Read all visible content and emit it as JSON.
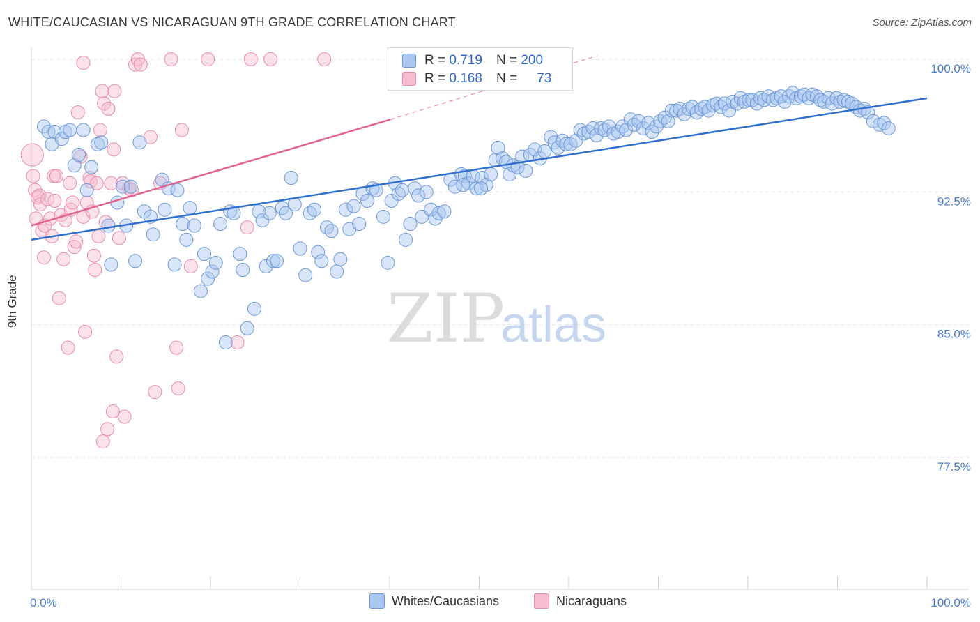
{
  "header": {
    "title": "WHITE/CAUCASIAN VS NICARAGUAN 9TH GRADE CORRELATION CHART",
    "source": "Source: ZipAtlas.com"
  },
  "watermark": {
    "zip": "ZIP",
    "atlas": "atlas"
  },
  "legend": {
    "rows": [
      {
        "r_label": "R =",
        "r_value": "0.719",
        "n_label": "N =",
        "n_value": "200"
      },
      {
        "r_label": "R =",
        "r_value": "0.168",
        "n_label": "N =",
        "n_value": "73"
      }
    ]
  },
  "bottom_legend": {
    "items": [
      {
        "label": "Whites/Caucasians"
      },
      {
        "label": "Nicaraguans"
      }
    ]
  },
  "colors": {
    "blue_fill": "#a9c6f0",
    "blue_stroke": "#6b98d8",
    "blue_line": "#2f6fce",
    "pink_fill": "#f7bcd0",
    "pink_stroke": "#e98aaa",
    "pink_line": "#e0628f",
    "grid": "#e4e4e4",
    "tick_text": "#4a7cd0"
  },
  "chart_data": {
    "type": "scatter",
    "title": "WHITE/CAUCASIAN VS NICARAGUAN 9TH GRADE CORRELATION CHART",
    "xlabel": "",
    "ylabel": "9th Grade",
    "xlim": [
      0,
      100
    ],
    "ylim": [
      70,
      101
    ],
    "x_tick_labels": [
      "0.0%",
      "100.0%"
    ],
    "y_ticks": [
      77.5,
      85.0,
      92.5,
      100.0
    ],
    "y_tick_labels": [
      "77.5%",
      "85.0%",
      "92.5%",
      "100.0%"
    ],
    "grid": true,
    "legend_position": "top-center",
    "series": [
      {
        "name": "Whites/Caucasians",
        "r": 0.719,
        "n": 200,
        "trend": {
          "x0": 0,
          "y0": 89.8,
          "x1": 100,
          "y1": 97.8
        },
        "points": [
          [
            1.4,
            96.2
          ],
          [
            1.9,
            95.9
          ],
          [
            2.3,
            95.2
          ],
          [
            2.6,
            95.9
          ],
          [
            3.4,
            95.5
          ],
          [
            3.8,
            95.9
          ],
          [
            4.3,
            96.0
          ],
          [
            4.8,
            94.0
          ],
          [
            5.3,
            94.6
          ],
          [
            5.8,
            96.0
          ],
          [
            6.2,
            92.6
          ],
          [
            6.7,
            93.9
          ],
          [
            7.4,
            95.2
          ],
          [
            7.8,
            95.3
          ],
          [
            8.6,
            90.6
          ],
          [
            8.9,
            88.4
          ],
          [
            9.6,
            91.9
          ],
          [
            10.2,
            92.8
          ],
          [
            10.6,
            90.6
          ],
          [
            11.1,
            92.8
          ],
          [
            11.6,
            88.6
          ],
          [
            12.1,
            95.3
          ],
          [
            12.6,
            91.4
          ],
          [
            13.3,
            91.1
          ],
          [
            13.6,
            90.1
          ],
          [
            14.6,
            93.2
          ],
          [
            14.9,
            91.5
          ],
          [
            15.3,
            92.7
          ],
          [
            16.0,
            88.4
          ],
          [
            16.3,
            92.6
          ],
          [
            16.9,
            90.7
          ],
          [
            17.3,
            89.8
          ],
          [
            17.7,
            91.6
          ],
          [
            18.2,
            90.6
          ],
          [
            18.9,
            86.9
          ],
          [
            19.3,
            89.0
          ],
          [
            19.7,
            87.6
          ],
          [
            20.2,
            88.0
          ],
          [
            20.6,
            88.5
          ],
          [
            21.1,
            90.7
          ],
          [
            21.7,
            84.0
          ],
          [
            22.2,
            91.4
          ],
          [
            22.6,
            91.3
          ],
          [
            23.3,
            89.0
          ],
          [
            23.6,
            88.1
          ],
          [
            24.1,
            84.8
          ],
          [
            24.9,
            85.9
          ],
          [
            25.4,
            91.4
          ],
          [
            25.8,
            90.9
          ],
          [
            26.2,
            88.3
          ],
          [
            26.6,
            91.3
          ],
          [
            27.0,
            88.6
          ],
          [
            27.4,
            88.6
          ],
          [
            28.0,
            91.6
          ],
          [
            28.4,
            91.3
          ],
          [
            29.0,
            93.3
          ],
          [
            29.4,
            91.8
          ],
          [
            30.0,
            89.3
          ],
          [
            30.6,
            87.8
          ],
          [
            31.1,
            91.3
          ],
          [
            31.6,
            91.5
          ],
          [
            32.0,
            89.1
          ],
          [
            32.4,
            88.6
          ],
          [
            33.0,
            90.5
          ],
          [
            33.5,
            90.3
          ],
          [
            34.1,
            88.0
          ],
          [
            34.5,
            88.7
          ],
          [
            35.1,
            91.5
          ],
          [
            35.5,
            90.4
          ],
          [
            36.0,
            91.7
          ],
          [
            36.6,
            90.7
          ],
          [
            37.0,
            92.4
          ],
          [
            37.5,
            92.0
          ],
          [
            38.1,
            92.7
          ],
          [
            38.5,
            92.6
          ],
          [
            39.3,
            91.1
          ],
          [
            39.8,
            88.5
          ],
          [
            40.2,
            92.0
          ],
          [
            40.6,
            93.0
          ],
          [
            41.0,
            92.4
          ],
          [
            41.4,
            92.6
          ],
          [
            41.8,
            89.8
          ],
          [
            42.3,
            90.7
          ],
          [
            42.8,
            92.7
          ],
          [
            43.2,
            92.3
          ],
          [
            43.6,
            91.1
          ],
          [
            44.1,
            92.5
          ],
          [
            44.6,
            91.5
          ],
          [
            45.1,
            91.0
          ],
          [
            45.5,
            91.3
          ],
          [
            46.1,
            91.4
          ],
          [
            46.8,
            93.2
          ],
          [
            47.3,
            92.8
          ],
          [
            48.0,
            93.5
          ],
          [
            48.4,
            93.4
          ],
          [
            48.8,
            93.0
          ],
          [
            49.3,
            93.4
          ],
          [
            49.7,
            92.7
          ],
          [
            50.3,
            93.3
          ],
          [
            50.8,
            92.9
          ],
          [
            51.3,
            93.5
          ],
          [
            51.8,
            94.3
          ],
          [
            52.1,
            95.0
          ],
          [
            52.6,
            94.4
          ],
          [
            53.0,
            94.2
          ],
          [
            53.4,
            93.5
          ],
          [
            53.8,
            94.0
          ],
          [
            54.3,
            93.9
          ],
          [
            54.8,
            94.5
          ],
          [
            55.2,
            93.7
          ],
          [
            55.7,
            94.6
          ],
          [
            56.2,
            94.9
          ],
          [
            56.8,
            94.4
          ],
          [
            57.3,
            94.8
          ],
          [
            58.0,
            95.6
          ],
          [
            58.4,
            95.3
          ],
          [
            58.8,
            95.0
          ],
          [
            59.3,
            95.4
          ],
          [
            59.7,
            95.2
          ],
          [
            60.2,
            95.2
          ],
          [
            60.8,
            95.4
          ],
          [
            61.3,
            96.0
          ],
          [
            61.7,
            95.8
          ],
          [
            62.2,
            95.9
          ],
          [
            62.7,
            96.1
          ],
          [
            63.1,
            95.7
          ],
          [
            63.6,
            96.1
          ],
          [
            64.0,
            96.0
          ],
          [
            64.5,
            96.2
          ],
          [
            65.0,
            95.8
          ],
          [
            65.5,
            95.9
          ],
          [
            66.0,
            96.2
          ],
          [
            66.4,
            96.0
          ],
          [
            66.9,
            96.6
          ],
          [
            67.3,
            96.3
          ],
          [
            67.8,
            96.5
          ],
          [
            68.3,
            96.1
          ],
          [
            68.9,
            96.4
          ],
          [
            69.3,
            95.9
          ],
          [
            69.8,
            96.2
          ],
          [
            70.2,
            96.5
          ],
          [
            70.7,
            96.7
          ],
          [
            71.1,
            96.5
          ],
          [
            71.5,
            97.1
          ],
          [
            72.0,
            97.1
          ],
          [
            72.4,
            97.2
          ],
          [
            72.9,
            96.9
          ],
          [
            73.4,
            97.2
          ],
          [
            73.8,
            97.3
          ],
          [
            74.3,
            97.0
          ],
          [
            74.8,
            97.2
          ],
          [
            75.2,
            97.3
          ],
          [
            75.6,
            97.1
          ],
          [
            76.1,
            97.4
          ],
          [
            76.5,
            97.5
          ],
          [
            77.0,
            97.3
          ],
          [
            77.4,
            97.5
          ],
          [
            77.9,
            97.1
          ],
          [
            78.3,
            97.6
          ],
          [
            78.8,
            97.5
          ],
          [
            79.2,
            97.8
          ],
          [
            79.6,
            97.6
          ],
          [
            80.1,
            97.7
          ],
          [
            80.5,
            97.7
          ],
          [
            81.0,
            97.5
          ],
          [
            81.4,
            97.8
          ],
          [
            81.8,
            97.7
          ],
          [
            82.3,
            97.9
          ],
          [
            82.8,
            97.7
          ],
          [
            83.2,
            97.8
          ],
          [
            83.7,
            97.9
          ],
          [
            84.1,
            97.6
          ],
          [
            84.6,
            97.9
          ],
          [
            85.0,
            98.1
          ],
          [
            85.4,
            97.8
          ],
          [
            85.9,
            97.9
          ],
          [
            86.3,
            98.0
          ],
          [
            86.8,
            97.8
          ],
          [
            87.2,
            98.0
          ],
          [
            87.7,
            97.9
          ],
          [
            88.1,
            97.7
          ],
          [
            88.5,
            97.6
          ],
          [
            89.0,
            97.8
          ],
          [
            89.4,
            97.5
          ],
          [
            89.9,
            97.8
          ],
          [
            90.3,
            97.6
          ],
          [
            90.7,
            97.7
          ],
          [
            91.2,
            97.6
          ],
          [
            91.6,
            97.5
          ],
          [
            92.1,
            97.3
          ],
          [
            92.5,
            97.1
          ],
          [
            93.0,
            97.2
          ],
          [
            93.4,
            97.0
          ],
          [
            94.0,
            96.5
          ],
          [
            94.7,
            96.3
          ],
          [
            95.2,
            96.4
          ],
          [
            95.7,
            96.1
          ],
          [
            50.2,
            92.7
          ],
          [
            48.2,
            92.9
          ]
        ]
      },
      {
        "name": "Nicaraguans",
        "r": 0.168,
        "n": 73,
        "trend": {
          "x0": 0,
          "y0": 90.6,
          "x1": 40.1,
          "y1": 96.6,
          "dash_x1": 63.2,
          "dash_y1": 100.2
        },
        "points": [
          [
            0.1,
            94.6
          ],
          [
            0.2,
            93.4
          ],
          [
            0.4,
            92.6
          ],
          [
            0.5,
            91.0
          ],
          [
            0.7,
            92.2
          ],
          [
            0.9,
            92.3
          ],
          [
            1.0,
            91.8
          ],
          [
            1.2,
            90.3
          ],
          [
            1.4,
            88.8
          ],
          [
            1.5,
            90.6
          ],
          [
            1.8,
            92.1
          ],
          [
            2.1,
            91.0
          ],
          [
            2.3,
            90.0
          ],
          [
            2.5,
            93.4
          ],
          [
            2.6,
            92.0
          ],
          [
            2.8,
            93.4
          ],
          [
            3.1,
            86.5
          ],
          [
            3.3,
            91.2
          ],
          [
            3.6,
            88.7
          ],
          [
            3.8,
            90.9
          ],
          [
            4.1,
            83.7
          ],
          [
            4.4,
            91.5
          ],
          [
            4.6,
            91.9
          ],
          [
            4.8,
            89.4
          ],
          [
            5.0,
            89.7
          ],
          [
            5.2,
            97.0
          ],
          [
            5.5,
            94.5
          ],
          [
            5.8,
            91.1
          ],
          [
            6.0,
            84.6
          ],
          [
            6.2,
            91.9
          ],
          [
            6.5,
            93.3
          ],
          [
            6.6,
            93.1
          ],
          [
            6.8,
            91.4
          ],
          [
            7.1,
            88.1
          ],
          [
            7.3,
            93.0
          ],
          [
            7.5,
            90.0
          ],
          [
            7.7,
            96.0
          ],
          [
            7.9,
            98.2
          ],
          [
            8.1,
            97.5
          ],
          [
            8.3,
            90.8
          ],
          [
            8.6,
            97.2
          ],
          [
            8.9,
            93.0
          ],
          [
            9.1,
            80.1
          ],
          [
            9.3,
            98.2
          ],
          [
            9.5,
            83.2
          ],
          [
            9.8,
            89.9
          ],
          [
            10.2,
            93.0
          ],
          [
            10.4,
            79.8
          ],
          [
            10.9,
            92.7
          ],
          [
            11.2,
            92.6
          ],
          [
            11.6,
            99.7
          ],
          [
            11.9,
            100.0
          ],
          [
            12.2,
            99.7
          ],
          [
            13.3,
            95.6
          ],
          [
            13.8,
            81.2
          ],
          [
            14.4,
            93.0
          ],
          [
            15.6,
            100.0
          ],
          [
            16.2,
            83.7
          ],
          [
            16.4,
            81.4
          ],
          [
            16.8,
            96.0
          ],
          [
            17.8,
            88.3
          ],
          [
            19.7,
            100.0
          ],
          [
            23.0,
            84.0
          ],
          [
            24.1,
            90.5
          ],
          [
            24.5,
            100.0
          ],
          [
            26.7,
            100.0
          ],
          [
            32.7,
            100.0
          ],
          [
            5.8,
            99.8
          ],
          [
            9.2,
            94.9
          ],
          [
            7.0,
            88.9
          ],
          [
            4.3,
            93.0
          ],
          [
            8.0,
            78.4
          ],
          [
            8.5,
            79.1
          ]
        ]
      }
    ]
  }
}
